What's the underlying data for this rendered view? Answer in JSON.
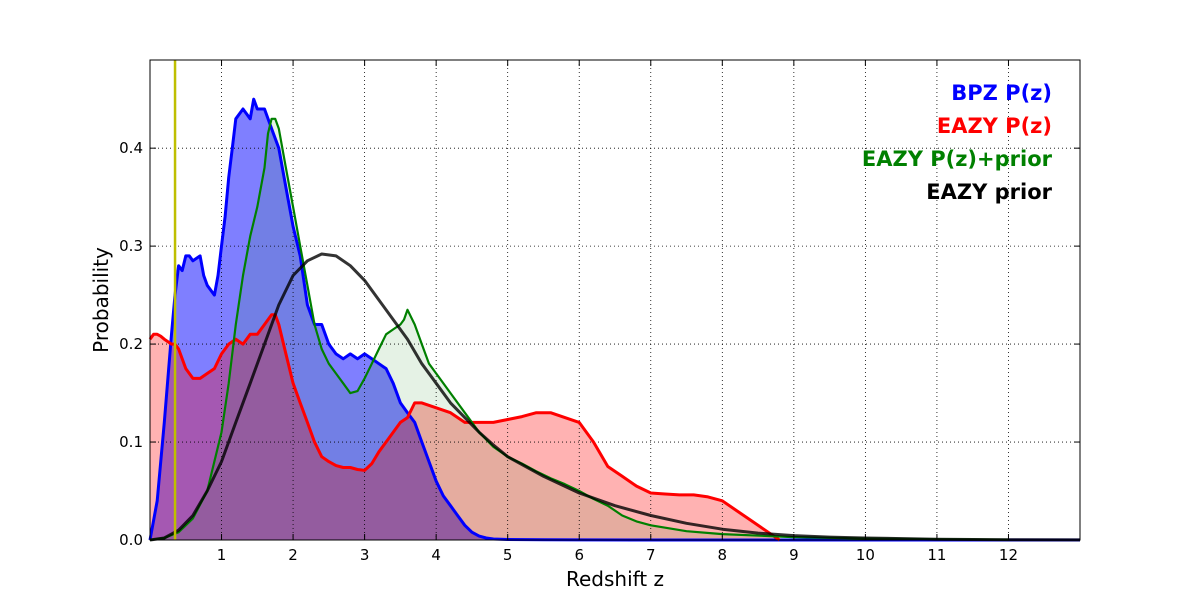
{
  "chart_data": {
    "type": "area",
    "xlabel": "Redshift z",
    "ylabel": "Probability",
    "xlim": [
      0,
      13
    ],
    "ylim": [
      0,
      0.49
    ],
    "grid": true,
    "grid_style": "dotted",
    "legend_placement": "top-right",
    "xticks": [
      1,
      2,
      3,
      4,
      5,
      6,
      7,
      8,
      9,
      10,
      11,
      12
    ],
    "xtick_labels": [
      "1",
      "2",
      "3",
      "4",
      "5",
      "6",
      "7",
      "8",
      "9",
      "10",
      "11",
      "12"
    ],
    "yticks": [
      0.0,
      0.1,
      0.2,
      0.3,
      0.4
    ],
    "ytick_labels": [
      "0.0",
      "0.1",
      "0.2",
      "0.3",
      "0.4"
    ],
    "vertical_line": {
      "x": 0.35,
      "color": "#bfbf00"
    },
    "series": [
      {
        "name": "BPZ P(z)",
        "color": "#0000ff",
        "fill": "#0000ff",
        "fill_opacity": 0.5,
        "x": [
          0,
          0.1,
          0.2,
          0.3,
          0.35,
          0.4,
          0.45,
          0.5,
          0.55,
          0.6,
          0.7,
          0.75,
          0.8,
          0.9,
          0.95,
          1.0,
          1.05,
          1.1,
          1.15,
          1.2,
          1.3,
          1.4,
          1.45,
          1.5,
          1.6,
          1.7,
          1.8,
          1.9,
          2.0,
          2.1,
          2.2,
          2.3,
          2.4,
          2.5,
          2.6,
          2.7,
          2.8,
          2.9,
          3.0,
          3.1,
          3.2,
          3.3,
          3.4,
          3.5,
          3.6,
          3.7,
          3.8,
          3.9,
          4.0,
          4.1,
          4.2,
          4.3,
          4.4,
          4.5,
          4.6,
          4.7,
          4.8,
          5.0,
          5.5,
          6.0,
          7.0,
          13.0
        ],
        "y": [
          0.0,
          0.04,
          0.12,
          0.21,
          0.25,
          0.28,
          0.275,
          0.29,
          0.29,
          0.285,
          0.29,
          0.27,
          0.26,
          0.25,
          0.27,
          0.3,
          0.33,
          0.37,
          0.4,
          0.43,
          0.44,
          0.43,
          0.45,
          0.44,
          0.44,
          0.42,
          0.4,
          0.36,
          0.32,
          0.29,
          0.24,
          0.22,
          0.22,
          0.2,
          0.19,
          0.185,
          0.19,
          0.185,
          0.19,
          0.185,
          0.18,
          0.175,
          0.16,
          0.14,
          0.13,
          0.12,
          0.1,
          0.08,
          0.06,
          0.045,
          0.035,
          0.025,
          0.015,
          0.008,
          0.004,
          0.002,
          0.001,
          0.0005,
          0.0002,
          0.0001,
          0.0,
          0.0
        ]
      },
      {
        "name": "EAZY P(z)",
        "color": "#ff0000",
        "fill": "#ff0000",
        "fill_opacity": 0.3,
        "x": [
          0,
          0.05,
          0.1,
          0.15,
          0.2,
          0.3,
          0.35,
          0.4,
          0.5,
          0.6,
          0.7,
          0.8,
          0.9,
          1.0,
          1.1,
          1.2,
          1.3,
          1.4,
          1.5,
          1.6,
          1.7,
          1.75,
          1.8,
          1.9,
          2.0,
          2.1,
          2.2,
          2.3,
          2.4,
          2.5,
          2.6,
          2.7,
          2.8,
          2.9,
          3.0,
          3.1,
          3.2,
          3.3,
          3.4,
          3.5,
          3.6,
          3.7,
          3.8,
          4.0,
          4.2,
          4.4,
          4.6,
          4.8,
          5.0,
          5.2,
          5.4,
          5.6,
          5.8,
          6.0,
          6.2,
          6.4,
          6.6,
          6.8,
          7.0,
          7.2,
          7.4,
          7.6,
          7.8,
          8.0,
          8.2,
          8.4,
          8.6,
          8.8
        ],
        "y": [
          0.205,
          0.21,
          0.21,
          0.208,
          0.205,
          0.2,
          0.2,
          0.195,
          0.175,
          0.165,
          0.165,
          0.17,
          0.175,
          0.19,
          0.2,
          0.205,
          0.2,
          0.21,
          0.21,
          0.22,
          0.23,
          0.23,
          0.22,
          0.19,
          0.16,
          0.14,
          0.12,
          0.1,
          0.085,
          0.08,
          0.076,
          0.074,
          0.074,
          0.072,
          0.071,
          0.078,
          0.09,
          0.1,
          0.11,
          0.12,
          0.125,
          0.14,
          0.14,
          0.135,
          0.13,
          0.12,
          0.12,
          0.12,
          0.123,
          0.126,
          0.13,
          0.13,
          0.125,
          0.12,
          0.1,
          0.075,
          0.065,
          0.055,
          0.048,
          0.047,
          0.046,
          0.046,
          0.044,
          0.04,
          0.03,
          0.02,
          0.01,
          0.0
        ]
      },
      {
        "name": "EAZY P(z)+prior",
        "color": "#008000",
        "fill": "#008000",
        "fill_opacity": 0.1,
        "x": [
          0,
          0.2,
          0.4,
          0.6,
          0.8,
          1.0,
          1.1,
          1.2,
          1.3,
          1.4,
          1.5,
          1.6,
          1.65,
          1.7,
          1.75,
          1.8,
          1.9,
          2.0,
          2.1,
          2.2,
          2.3,
          2.4,
          2.5,
          2.6,
          2.7,
          2.8,
          2.9,
          3.0,
          3.1,
          3.2,
          3.3,
          3.4,
          3.5,
          3.55,
          3.6,
          3.7,
          3.8,
          3.9,
          4.0,
          4.2,
          4.4,
          4.6,
          4.8,
          5.0,
          5.2,
          5.4,
          5.6,
          5.8,
          6.0,
          6.2,
          6.4,
          6.6,
          6.8,
          7.0,
          7.5,
          8.0,
          9.0,
          10.0,
          11.0,
          12.0
        ],
        "y": [
          0.0,
          0.002,
          0.008,
          0.022,
          0.05,
          0.11,
          0.16,
          0.22,
          0.27,
          0.31,
          0.34,
          0.38,
          0.415,
          0.43,
          0.43,
          0.42,
          0.38,
          0.34,
          0.3,
          0.26,
          0.22,
          0.195,
          0.18,
          0.17,
          0.16,
          0.15,
          0.152,
          0.165,
          0.18,
          0.195,
          0.21,
          0.215,
          0.22,
          0.225,
          0.235,
          0.22,
          0.2,
          0.18,
          0.17,
          0.15,
          0.13,
          0.11,
          0.095,
          0.085,
          0.078,
          0.07,
          0.063,
          0.057,
          0.05,
          0.042,
          0.035,
          0.025,
          0.019,
          0.015,
          0.009,
          0.006,
          0.003,
          0.0015,
          0.0008,
          0.0003
        ]
      },
      {
        "name": "EAZY prior",
        "color": "#000000",
        "fill": "none",
        "fill_opacity": 0,
        "x": [
          0,
          0.2,
          0.4,
          0.6,
          0.8,
          1.0,
          1.2,
          1.4,
          1.6,
          1.8,
          2.0,
          2.2,
          2.4,
          2.6,
          2.8,
          3.0,
          3.2,
          3.4,
          3.6,
          3.8,
          4.0,
          4.2,
          4.4,
          4.6,
          4.8,
          5.0,
          5.5,
          6.0,
          6.5,
          7.0,
          7.5,
          8.0,
          8.5,
          9.0,
          9.5,
          10.0,
          11.0,
          12.0,
          13.0
        ],
        "y": [
          0.0,
          0.002,
          0.01,
          0.025,
          0.05,
          0.08,
          0.12,
          0.16,
          0.2,
          0.24,
          0.27,
          0.285,
          0.292,
          0.29,
          0.28,
          0.265,
          0.245,
          0.225,
          0.205,
          0.18,
          0.16,
          0.14,
          0.125,
          0.11,
          0.097,
          0.085,
          0.065,
          0.048,
          0.035,
          0.025,
          0.017,
          0.011,
          0.007,
          0.0045,
          0.003,
          0.002,
          0.0008,
          0.0003,
          0.0001
        ]
      }
    ]
  }
}
